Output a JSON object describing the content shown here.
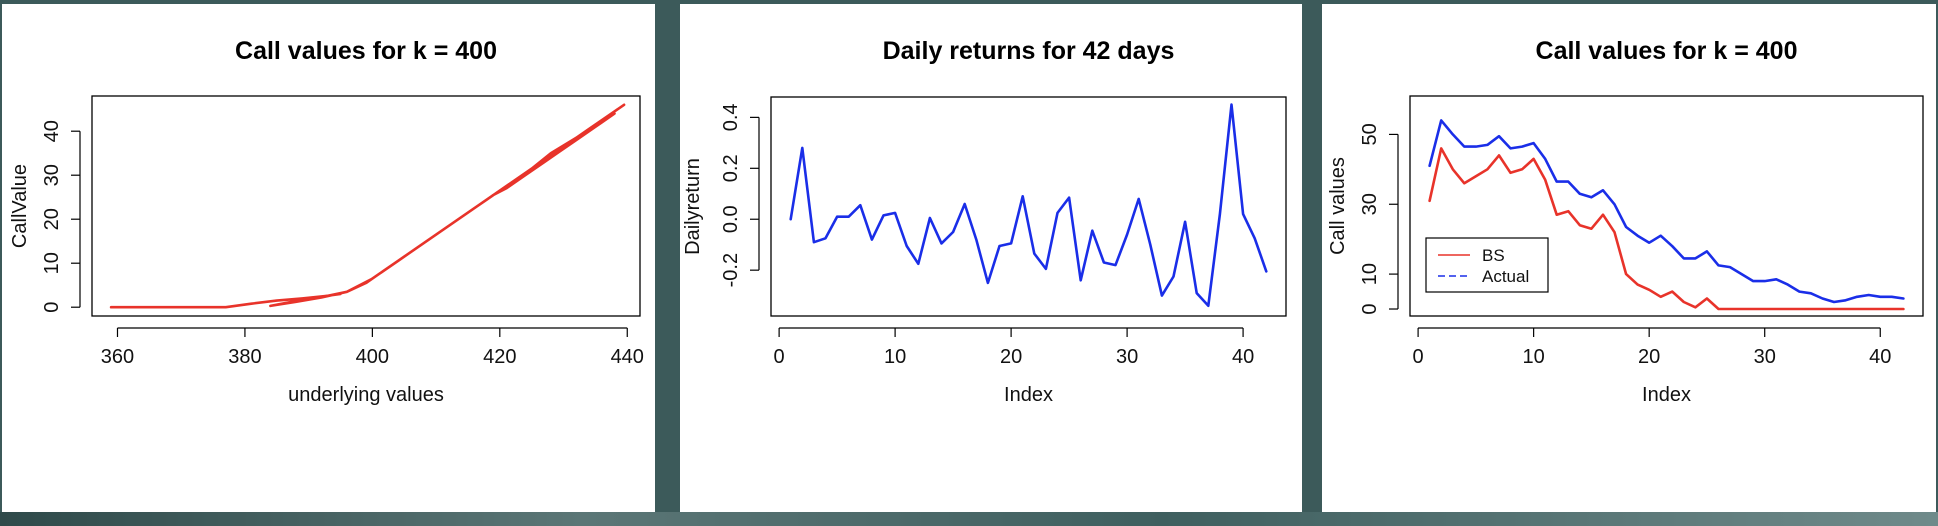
{
  "chart_data": [
    {
      "type": "line",
      "title": "Call values for k = 400",
      "xlabel": "underlying values",
      "ylabel": "CallValue",
      "xlim": [
        356,
        442
      ],
      "ylim": [
        -2,
        48
      ],
      "xticks": [
        360,
        380,
        400,
        420,
        440
      ],
      "yticks": [
        0,
        10,
        20,
        30,
        40
      ],
      "color": "#e8332a",
      "series": [
        {
          "x": [
            359,
            365,
            372,
            377,
            381,
            385,
            389,
            393,
            396,
            399,
            401,
            404,
            408,
            412,
            416,
            418,
            419,
            421,
            424,
            427,
            430,
            433,
            436,
            438,
            436,
            432,
            428,
            425,
            428,
            432,
            436,
            438,
            439.5,
            437,
            434,
            431,
            434,
            437,
            438.5,
            435,
            430,
            425,
            420,
            415,
            410,
            405,
            400,
            396,
            392,
            388,
            384,
            388,
            392,
            395
          ],
          "y": [
            0,
            0,
            0,
            0,
            0.8,
            1.5,
            2.0,
            2.6,
            3.5,
            5.5,
            7.5,
            10.5,
            14.5,
            18.5,
            22.5,
            24.5,
            25.5,
            27,
            30,
            33,
            36,
            39,
            42,
            44,
            42.5,
            38.5,
            35,
            31.5,
            34,
            38,
            42,
            44.5,
            46,
            43.5,
            40.5,
            37.5,
            40.5,
            43.5,
            45,
            41.5,
            36.5,
            31.5,
            26.5,
            21.5,
            16.5,
            11.5,
            6.5,
            3.5,
            2.2,
            1.2,
            0.3,
            1.4,
            2.4,
            3.0
          ]
        }
      ]
    },
    {
      "type": "line",
      "title": "Daily returns for 42 days",
      "xlabel": "Index",
      "ylabel": "Dailyreturn",
      "xlim": [
        -0.7,
        43.7
      ],
      "ylim": [
        -0.38,
        0.48
      ],
      "xticks": [
        0,
        10,
        20,
        30,
        40
      ],
      "yticks": [
        -0.2,
        0.0,
        0.2,
        0.4
      ],
      "ytick_labels": [
        "-0.2",
        "0.0",
        "0.2",
        "0.4"
      ],
      "color": "#1a2ee8",
      "series": [
        {
          "x": [
            1,
            2,
            3,
            4,
            5,
            6,
            7,
            8,
            9,
            10,
            11,
            12,
            13,
            14,
            15,
            16,
            17,
            18,
            19,
            20,
            21,
            22,
            23,
            24,
            25,
            26,
            27,
            28,
            29,
            30,
            31,
            32,
            33,
            34,
            35,
            36,
            37,
            38,
            39,
            40,
            41,
            42
          ],
          "y": [
            0.0,
            0.28,
            -0.09,
            -0.075,
            0.01,
            0.01,
            0.055,
            -0.08,
            0.015,
            0.025,
            -0.105,
            -0.175,
            0.005,
            -0.095,
            -0.05,
            0.06,
            -0.08,
            -0.25,
            -0.105,
            -0.095,
            0.09,
            -0.135,
            -0.195,
            0.025,
            0.085,
            -0.24,
            -0.045,
            -0.17,
            -0.18,
            -0.06,
            0.08,
            -0.1,
            -0.3,
            -0.225,
            -0.01,
            -0.29,
            -0.34,
            0.02,
            0.45,
            0.02,
            -0.075,
            -0.205
          ]
        }
      ]
    },
    {
      "type": "line",
      "title": "Call values for k = 400",
      "xlabel": "Index",
      "ylabel": "Call values",
      "xlim": [
        -0.7,
        43.7
      ],
      "ylim": [
        -2,
        61
      ],
      "xticks": [
        0,
        10,
        20,
        30,
        40
      ],
      "yticks": [
        0,
        10,
        30,
        50
      ],
      "legend": {
        "position": "bottom-left",
        "entries": [
          {
            "label": "BS",
            "color": "#e8332a",
            "dash": "solid"
          },
          {
            "label": "Actual",
            "color": "#1a2ee8",
            "dash": "dashed"
          }
        ]
      },
      "series": [
        {
          "name": "BS",
          "color": "#e8332a",
          "x": [
            1,
            2,
            3,
            4,
            5,
            6,
            7,
            8,
            9,
            10,
            11,
            12,
            13,
            14,
            15,
            16,
            17,
            18,
            19,
            20,
            21,
            22,
            23,
            24,
            25,
            26,
            27,
            28,
            29,
            30,
            31,
            32,
            33,
            34,
            35,
            36,
            37,
            38,
            39,
            40,
            41,
            42
          ],
          "y": [
            31,
            46,
            40,
            36,
            38,
            40,
            44,
            39,
            40,
            43,
            37,
            27,
            28,
            24,
            23,
            27,
            22,
            10,
            7,
            5.5,
            3.5,
            5,
            2,
            0.5,
            3,
            0,
            0,
            0,
            0,
            0,
            0,
            0,
            0,
            0,
            0,
            0,
            0,
            0,
            0,
            0,
            0,
            0
          ]
        },
        {
          "name": "Actual",
          "color": "#1a2ee8",
          "x": [
            1,
            2,
            3,
            4,
            5,
            6,
            7,
            8,
            9,
            10,
            11,
            12,
            13,
            14,
            15,
            16,
            17,
            18,
            19,
            20,
            21,
            22,
            23,
            24,
            25,
            26,
            27,
            28,
            29,
            30,
            31,
            32,
            33,
            34,
            35,
            36,
            37,
            38,
            39,
            40,
            41,
            42
          ],
          "y": [
            41,
            54,
            50,
            46.5,
            46.5,
            47,
            49.5,
            46,
            46.5,
            47.5,
            43,
            36.5,
            36.5,
            33,
            32,
            34,
            30,
            23.5,
            21,
            19,
            21,
            18,
            14.5,
            14.5,
            16.5,
            12.5,
            12,
            10,
            8,
            8,
            8.5,
            7,
            5,
            4.5,
            3,
            2,
            2.5,
            3.5,
            4,
            3.5,
            3.5,
            3
          ]
        }
      ]
    }
  ]
}
